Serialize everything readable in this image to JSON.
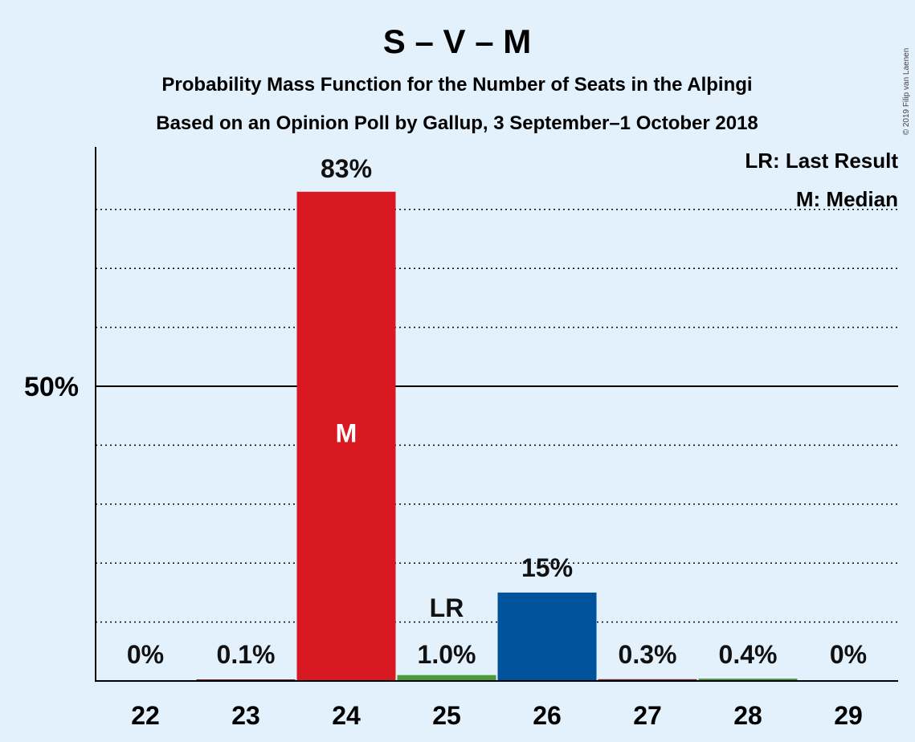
{
  "title": "S – V – M",
  "subtitle1": "Probability Mass Function for the Number of Seats in the Alþingi",
  "subtitle2": "Based on an Opinion Poll by Gallup, 3 September–1 October 2018",
  "copyright": "© 2019 Filip van Laenen",
  "legend": {
    "last_result": "LR: Last Result",
    "median": "M: Median"
  },
  "colors": {
    "background": "#e3f1fd",
    "S": "#d81921",
    "V": "#4a9a3c",
    "M": "#00529c",
    "small": "#7a1e2a"
  },
  "chart_data": {
    "type": "bar",
    "categories": [
      "22",
      "23",
      "24",
      "25",
      "26",
      "27",
      "28",
      "29"
    ],
    "values": [
      0,
      0.1,
      83,
      1.0,
      15,
      0.3,
      0.4,
      0
    ],
    "labels": [
      "0%",
      "0.1%",
      "83%",
      "1.0%",
      "15%",
      "0.3%",
      "0.4%",
      "0%"
    ],
    "bar_colors": [
      "#7a1e2a",
      "#7a1e2a",
      "#d81921",
      "#4a9a3c",
      "#00529c",
      "#7a1e2a",
      "#4a9a3c",
      "#7a1e2a"
    ],
    "ylim": [
      0,
      90
    ],
    "yticks": [
      {
        "value": 50,
        "label": "50%"
      }
    ],
    "gridlines": [
      10,
      20,
      30,
      40,
      60,
      70,
      80
    ],
    "median_category": "24",
    "median_label": "M",
    "last_result_category": "25",
    "last_result_label": "LR"
  }
}
